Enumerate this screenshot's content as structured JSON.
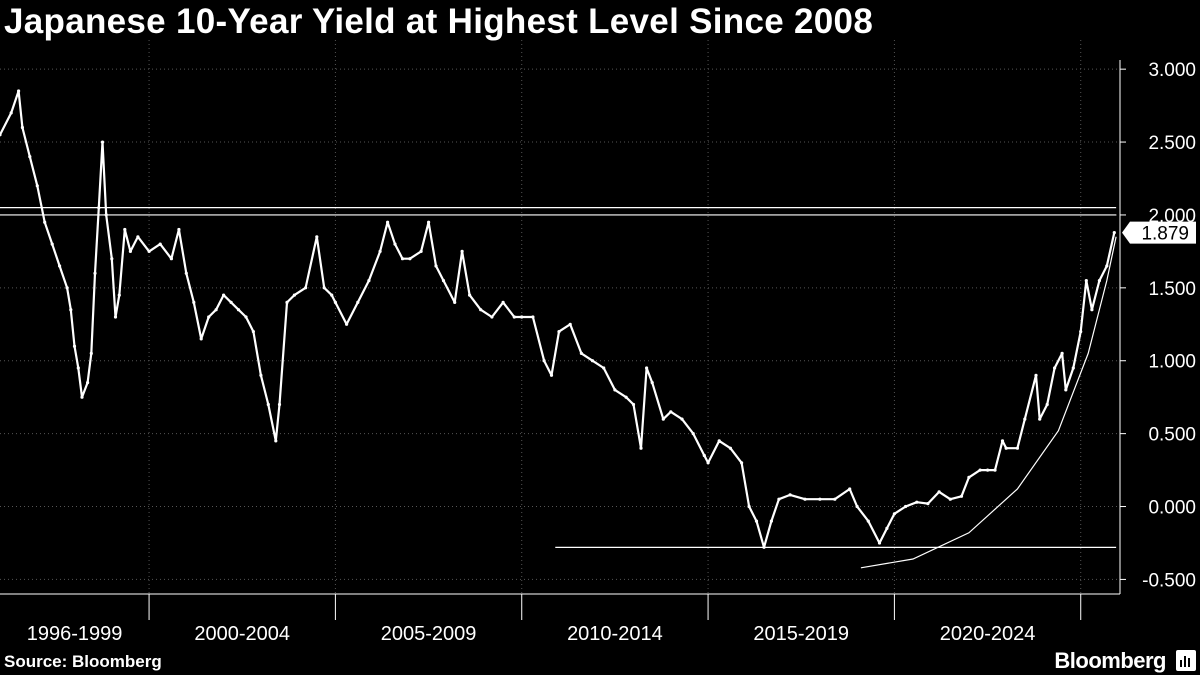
{
  "title": "Japanese 10-Year Yield at Highest Level Since 2008",
  "source": "Source: Bloomberg",
  "brand": "Bloomberg",
  "colors": {
    "background": "#000000",
    "line": "#ffffff",
    "grid": "#555555"
  },
  "chart_data": {
    "type": "line",
    "title": "Japanese 10-Year Yield at Highest Level Since 2008",
    "ylim": [
      -0.6,
      3.2
    ],
    "yticks": [
      "3.000",
      "2.500",
      "2.000",
      "1.500",
      "1.000",
      "0.500",
      "0.000",
      "-0.500"
    ],
    "ytick_values": [
      3.0,
      2.5,
      2.0,
      1.5,
      1.0,
      0.5,
      0.0,
      -0.5
    ],
    "xlim": [
      1996.0,
      2026.0
    ],
    "xlabels": [
      "1996-1999",
      "2000-2004",
      "2005-2009",
      "2010-2014",
      "2015-2019",
      "2020-2024"
    ],
    "xlabel_centers": [
      1998.0,
      2002.5,
      2007.5,
      2012.5,
      2017.5,
      2022.5
    ],
    "period_boundaries": [
      2000.0,
      2005.0,
      2010.0,
      2015.0,
      2020.0,
      2025.0
    ],
    "grid": true,
    "last_value_label": "1.879",
    "series": [
      {
        "values": [
          [
            1996.0,
            2.55
          ],
          [
            1996.3,
            2.7
          ],
          [
            1996.5,
            2.85
          ],
          [
            1996.6,
            2.6
          ],
          [
            1996.8,
            2.4
          ],
          [
            1997.0,
            2.2
          ],
          [
            1997.2,
            1.95
          ],
          [
            1997.4,
            1.8
          ],
          [
            1997.6,
            1.65
          ],
          [
            1997.8,
            1.5
          ],
          [
            1997.9,
            1.35
          ],
          [
            1998.0,
            1.1
          ],
          [
            1998.1,
            0.95
          ],
          [
            1998.2,
            0.75
          ],
          [
            1998.35,
            0.85
          ],
          [
            1998.45,
            1.05
          ],
          [
            1998.55,
            1.6
          ],
          [
            1998.65,
            2.05
          ],
          [
            1998.75,
            2.5
          ],
          [
            1998.85,
            2.0
          ],
          [
            1999.0,
            1.7
          ],
          [
            1999.1,
            1.3
          ],
          [
            1999.2,
            1.45
          ],
          [
            1999.35,
            1.9
          ],
          [
            1999.5,
            1.75
          ],
          [
            1999.7,
            1.85
          ],
          [
            2000.0,
            1.75
          ],
          [
            2000.3,
            1.8
          ],
          [
            2000.6,
            1.7
          ],
          [
            2000.8,
            1.9
          ],
          [
            2001.0,
            1.6
          ],
          [
            2001.2,
            1.4
          ],
          [
            2001.4,
            1.15
          ],
          [
            2001.6,
            1.3
          ],
          [
            2001.8,
            1.35
          ],
          [
            2002.0,
            1.45
          ],
          [
            2002.2,
            1.4
          ],
          [
            2002.4,
            1.35
          ],
          [
            2002.6,
            1.3
          ],
          [
            2002.8,
            1.2
          ],
          [
            2003.0,
            0.9
          ],
          [
            2003.2,
            0.7
          ],
          [
            2003.4,
            0.45
          ],
          [
            2003.5,
            0.7
          ],
          [
            2003.7,
            1.4
          ],
          [
            2003.9,
            1.45
          ],
          [
            2004.2,
            1.5
          ],
          [
            2004.5,
            1.85
          ],
          [
            2004.7,
            1.5
          ],
          [
            2004.9,
            1.45
          ],
          [
            2005.0,
            1.4
          ],
          [
            2005.3,
            1.25
          ],
          [
            2005.6,
            1.4
          ],
          [
            2005.9,
            1.55
          ],
          [
            2006.2,
            1.75
          ],
          [
            2006.4,
            1.95
          ],
          [
            2006.6,
            1.8
          ],
          [
            2006.8,
            1.7
          ],
          [
            2007.0,
            1.7
          ],
          [
            2007.3,
            1.75
          ],
          [
            2007.5,
            1.95
          ],
          [
            2007.7,
            1.65
          ],
          [
            2007.9,
            1.55
          ],
          [
            2008.2,
            1.4
          ],
          [
            2008.4,
            1.75
          ],
          [
            2008.6,
            1.45
          ],
          [
            2008.9,
            1.35
          ],
          [
            2009.2,
            1.3
          ],
          [
            2009.5,
            1.4
          ],
          [
            2009.8,
            1.3
          ],
          [
            2010.0,
            1.3
          ],
          [
            2010.3,
            1.3
          ],
          [
            2010.6,
            1.0
          ],
          [
            2010.8,
            0.9
          ],
          [
            2011.0,
            1.2
          ],
          [
            2011.3,
            1.25
          ],
          [
            2011.6,
            1.05
          ],
          [
            2011.9,
            1.0
          ],
          [
            2012.2,
            0.95
          ],
          [
            2012.5,
            0.8
          ],
          [
            2012.8,
            0.75
          ],
          [
            2013.0,
            0.7
          ],
          [
            2013.2,
            0.4
          ],
          [
            2013.35,
            0.95
          ],
          [
            2013.5,
            0.85
          ],
          [
            2013.8,
            0.6
          ],
          [
            2014.0,
            0.65
          ],
          [
            2014.3,
            0.6
          ],
          [
            2014.6,
            0.5
          ],
          [
            2014.9,
            0.35
          ],
          [
            2015.0,
            0.3
          ],
          [
            2015.3,
            0.45
          ],
          [
            2015.6,
            0.4
          ],
          [
            2015.9,
            0.3
          ],
          [
            2016.1,
            0.0
          ],
          [
            2016.3,
            -0.1
          ],
          [
            2016.5,
            -0.28
          ],
          [
            2016.7,
            -0.1
          ],
          [
            2016.9,
            0.05
          ],
          [
            2017.2,
            0.08
          ],
          [
            2017.6,
            0.05
          ],
          [
            2018.0,
            0.05
          ],
          [
            2018.4,
            0.05
          ],
          [
            2018.8,
            0.12
          ],
          [
            2019.0,
            0.0
          ],
          [
            2019.3,
            -0.1
          ],
          [
            2019.6,
            -0.25
          ],
          [
            2019.8,
            -0.15
          ],
          [
            2020.0,
            -0.05
          ],
          [
            2020.3,
            0.0
          ],
          [
            2020.6,
            0.03
          ],
          [
            2020.9,
            0.02
          ],
          [
            2021.2,
            0.1
          ],
          [
            2021.5,
            0.05
          ],
          [
            2021.8,
            0.07
          ],
          [
            2022.0,
            0.2
          ],
          [
            2022.3,
            0.25
          ],
          [
            2022.5,
            0.25
          ],
          [
            2022.7,
            0.25
          ],
          [
            2022.9,
            0.45
          ],
          [
            2023.0,
            0.4
          ],
          [
            2023.3,
            0.4
          ],
          [
            2023.5,
            0.6
          ],
          [
            2023.8,
            0.9
          ],
          [
            2023.9,
            0.6
          ],
          [
            2024.1,
            0.7
          ],
          [
            2024.3,
            0.95
          ],
          [
            2024.5,
            1.05
          ],
          [
            2024.6,
            0.8
          ],
          [
            2024.8,
            0.95
          ],
          [
            2025.0,
            1.2
          ],
          [
            2025.15,
            1.55
          ],
          [
            2025.3,
            1.35
          ],
          [
            2025.5,
            1.55
          ],
          [
            2025.7,
            1.65
          ],
          [
            2025.9,
            1.879
          ]
        ]
      }
    ],
    "reference_lines": [
      {
        "y": 2.05,
        "x_start": 1996.0,
        "x_end": 2025.95
      },
      {
        "y": 2.0,
        "x_start": 1996.0,
        "x_end": 2025.95
      },
      {
        "y": -0.28,
        "x_start": 2010.9,
        "x_end": 2025.95
      }
    ],
    "annotation_curve": [
      [
        2019.1,
        -0.42
      ],
      [
        2020.5,
        -0.36
      ],
      [
        2022.0,
        -0.18
      ],
      [
        2023.3,
        0.12
      ],
      [
        2024.4,
        0.52
      ],
      [
        2025.2,
        1.05
      ],
      [
        2025.7,
        1.55
      ],
      [
        2025.95,
        1.85
      ]
    ]
  }
}
